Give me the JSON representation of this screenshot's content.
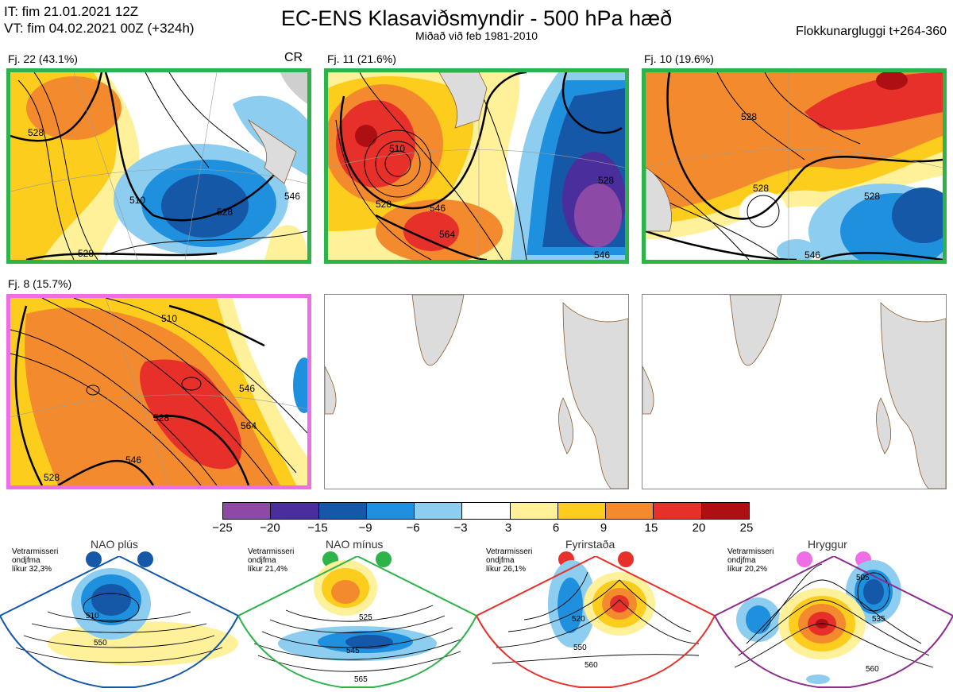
{
  "header": {
    "it_line": "IT: fim 21.01.2021 12Z",
    "vt_line": "VT: fim 04.02.2021 00Z  (+324h)",
    "title": "EC-ENS Klasaviðsmyndir - 500 hPa hæð",
    "subtitle": "Miðað við feb 1981-2010",
    "window": "Flokkunargluggi t+264-360"
  },
  "panels": [
    {
      "label": "Fj. 22 (43.1%)",
      "tag": "CR",
      "border_color": "#2db34a",
      "contours": [
        "528",
        "528",
        "510",
        "528",
        "546"
      ]
    },
    {
      "label": "Fj. 11 (21.6%)",
      "tag": "",
      "border_color": "#2db34a",
      "contours": [
        "510",
        "528",
        "546",
        "564",
        "528",
        "546"
      ]
    },
    {
      "label": "Fj. 10 (19.6%)",
      "tag": "",
      "border_color": "#2db34a",
      "contours": [
        "528",
        "528",
        "528",
        "546"
      ]
    },
    {
      "label": "Fj. 8 (15.7%)",
      "tag": "",
      "border_color": "#ee6fe5",
      "contours": [
        "510",
        "528",
        "546",
        "564",
        "546",
        "528"
      ]
    }
  ],
  "colorbar": {
    "ticks": [
      "−25",
      "−20",
      "−15",
      "−9",
      "−6",
      "−3",
      "3",
      "6",
      "9",
      "15",
      "20",
      "25"
    ],
    "colors": [
      "#8c4aa6",
      "#4a2f9c",
      "#1558a8",
      "#1e90dd",
      "#8ccdf0",
      "#ffffff",
      "#fff19a",
      "#fdcd1e",
      "#f38b2e",
      "#e8302a",
      "#ad0f12"
    ]
  },
  "regimes": [
    {
      "name": "NAO plús",
      "line1": "Vetrarmisseri",
      "line2": "ondjfma",
      "line3": "líkur 32,3%",
      "color": "#1558a8",
      "contours": [
        "510",
        "550"
      ]
    },
    {
      "name": "NAO mínus",
      "line1": "Vetrarmisseri",
      "line2": "ondjfma",
      "line3": "líkur 21,4%",
      "color": "#2db34a",
      "contours": [
        "525",
        "545",
        "565"
      ]
    },
    {
      "name": "Fyrirstaða",
      "line1": "Vetrarmisseri",
      "line2": "ondjfma",
      "line3": "líkur 26,1%",
      "color": "#e8302a",
      "contours": [
        "520",
        "550",
        "560"
      ]
    },
    {
      "name": "Hryggur",
      "line1": "Vetrarmisseri",
      "line2": "ondjfma",
      "line3": "líkur 20,2%",
      "color": "#ee6fe5",
      "contours": [
        "505",
        "535",
        "560"
      ]
    }
  ],
  "icons": {
    "land": "land-shape",
    "contour": "contour-line"
  }
}
